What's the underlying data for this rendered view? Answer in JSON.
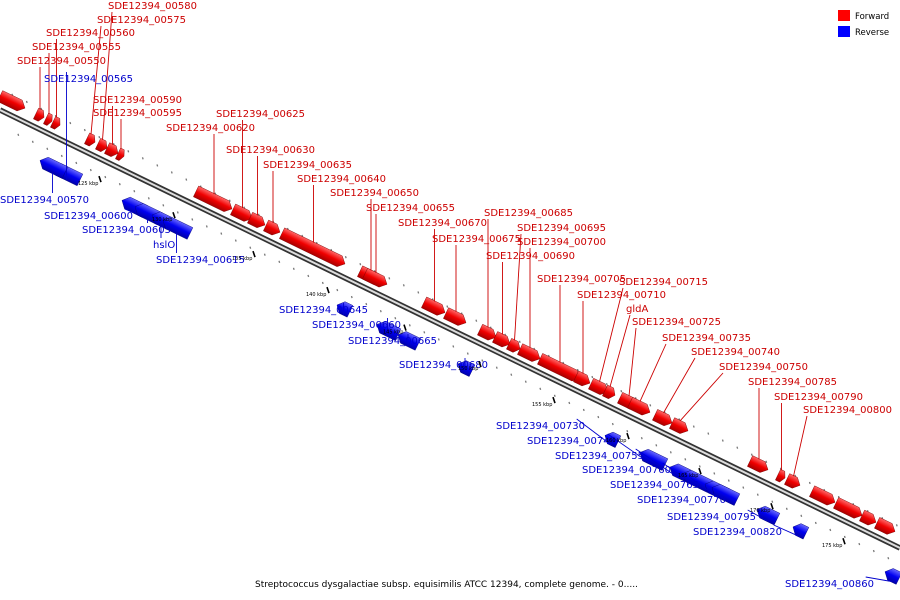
{
  "caption": "Streptococcus dysgalactiae subsp. equisimilis ATCC 12394, complete genome. - 0.....",
  "legend": {
    "forward_label": "Forward",
    "reverse_label": "Reverse",
    "forward_color": "#ff0000",
    "reverse_color": "#0000ff"
  },
  "colors": {
    "forward_label": "#cc0000",
    "reverse_label": "#0000cc",
    "backbone": "#777777"
  },
  "ticks": [
    "125 kbp",
    "130 kbp",
    "135 kbp",
    "140 kbp",
    "145 kbp",
    "150 kbp",
    "155 kbp",
    "160 kbp",
    "165 kbp",
    "170 kbp",
    "175 kbp"
  ],
  "features": [
    {
      "id": "f0",
      "strand": "forward",
      "label": ""
    },
    {
      "id": "f1",
      "strand": "forward",
      "label": "SDE12394_00550"
    },
    {
      "id": "f2",
      "strand": "forward",
      "label": "SDE12394_00555"
    },
    {
      "id": "f3",
      "strand": "forward",
      "label": "SDE12394_00560"
    },
    {
      "id": "f4",
      "strand": "reverse",
      "label": "SDE12394_00565"
    },
    {
      "id": "f5",
      "strand": "reverse",
      "label": "SDE12394_00570"
    },
    {
      "id": "f6",
      "strand": "forward",
      "label": "SDE12394_00575"
    },
    {
      "id": "f7",
      "strand": "forward",
      "label": "SDE12394_00580"
    },
    {
      "id": "f8",
      "strand": "forward",
      "label": "SDE12394_00590"
    },
    {
      "id": "f9",
      "strand": "forward",
      "label": "SDE12394_00595"
    },
    {
      "id": "f10",
      "strand": "reverse",
      "label": "SDE12394_00600"
    },
    {
      "id": "f11",
      "strand": "reverse",
      "label": "SDE12394_00605"
    },
    {
      "id": "f12",
      "strand": "reverse",
      "label": "hslO"
    },
    {
      "id": "f13",
      "strand": "reverse",
      "label": "SDE12394_00615"
    },
    {
      "id": "f14",
      "strand": "forward",
      "label": "SDE12394_00620"
    },
    {
      "id": "f15",
      "strand": "forward",
      "label": "SDE12394_00625"
    },
    {
      "id": "f16",
      "strand": "forward",
      "label": "SDE12394_00630"
    },
    {
      "id": "f17",
      "strand": "forward",
      "label": "SDE12394_00635"
    },
    {
      "id": "f18",
      "strand": "forward",
      "label": "SDE12394_00640"
    },
    {
      "id": "f19",
      "strand": "reverse",
      "label": "SDE12394_00645"
    },
    {
      "id": "f20",
      "strand": "forward",
      "label": "SDE12394_00650"
    },
    {
      "id": "f21",
      "strand": "forward",
      "label": "SDE12394_00655"
    },
    {
      "id": "f22",
      "strand": "reverse",
      "label": "SDE12394_00660"
    },
    {
      "id": "f23",
      "strand": "reverse",
      "label": "SDE12394_00665"
    },
    {
      "id": "f24",
      "strand": "forward",
      "label": "SDE12394_00670"
    },
    {
      "id": "f25",
      "strand": "forward",
      "label": "SDE12394_00675"
    },
    {
      "id": "f26",
      "strand": "reverse",
      "label": "SDE12394_00680"
    },
    {
      "id": "f27",
      "strand": "forward",
      "label": "SDE12394_00685"
    },
    {
      "id": "f28",
      "strand": "forward",
      "label": "SDE12394_00690"
    },
    {
      "id": "f29",
      "strand": "forward",
      "label": "SDE12394_00695"
    },
    {
      "id": "f30",
      "strand": "forward",
      "label": "SDE12394_00700"
    },
    {
      "id": "f31",
      "strand": "forward",
      "label": "SDE12394_00705"
    },
    {
      "id": "f32",
      "strand": "forward",
      "label": "SDE12394_00710"
    },
    {
      "id": "f33",
      "strand": "forward",
      "label": "SDE12394_00715"
    },
    {
      "id": "f34",
      "strand": "forward",
      "label": "gldA"
    },
    {
      "id": "f35",
      "strand": "forward",
      "label": "SDE12394_00725"
    },
    {
      "id": "f36",
      "strand": "reverse",
      "label": "SDE12394_00730"
    },
    {
      "id": "f37",
      "strand": "forward",
      "label": "SDE12394_00735"
    },
    {
      "id": "f38",
      "strand": "forward",
      "label": "SDE12394_00740"
    },
    {
      "id": "f39",
      "strand": "reverse",
      "label": "SDE12394_00745"
    },
    {
      "id": "f40",
      "strand": "forward",
      "label": "SDE12394_00750"
    },
    {
      "id": "f41",
      "strand": "reverse",
      "label": "SDE12394_00755"
    },
    {
      "id": "f42",
      "strand": "reverse",
      "label": "SDE12394_00760"
    },
    {
      "id": "f43",
      "strand": "reverse",
      "label": "SDE12394_00765"
    },
    {
      "id": "f44",
      "strand": "reverse",
      "label": "SDE12394_00770"
    },
    {
      "id": "f45",
      "strand": "forward",
      "label": "SDE12394_00785"
    },
    {
      "id": "f46",
      "strand": "forward",
      "label": "SDE12394_00790"
    },
    {
      "id": "f47",
      "strand": "reverse",
      "label": "SDE12394_00795"
    },
    {
      "id": "f48",
      "strand": "forward",
      "label": "SDE12394_00800"
    },
    {
      "id": "f49",
      "strand": "reverse",
      "label": "SDE12394_00820"
    },
    {
      "id": "f50",
      "strand": "forward",
      "label": ""
    },
    {
      "id": "f51",
      "strand": "forward",
      "label": ""
    },
    {
      "id": "f52",
      "strand": "forward",
      "label": ""
    },
    {
      "id": "f53",
      "strand": "forward",
      "label": ""
    },
    {
      "id": "f54",
      "strand": "reverse",
      "label": "SDE12394_00860"
    }
  ]
}
